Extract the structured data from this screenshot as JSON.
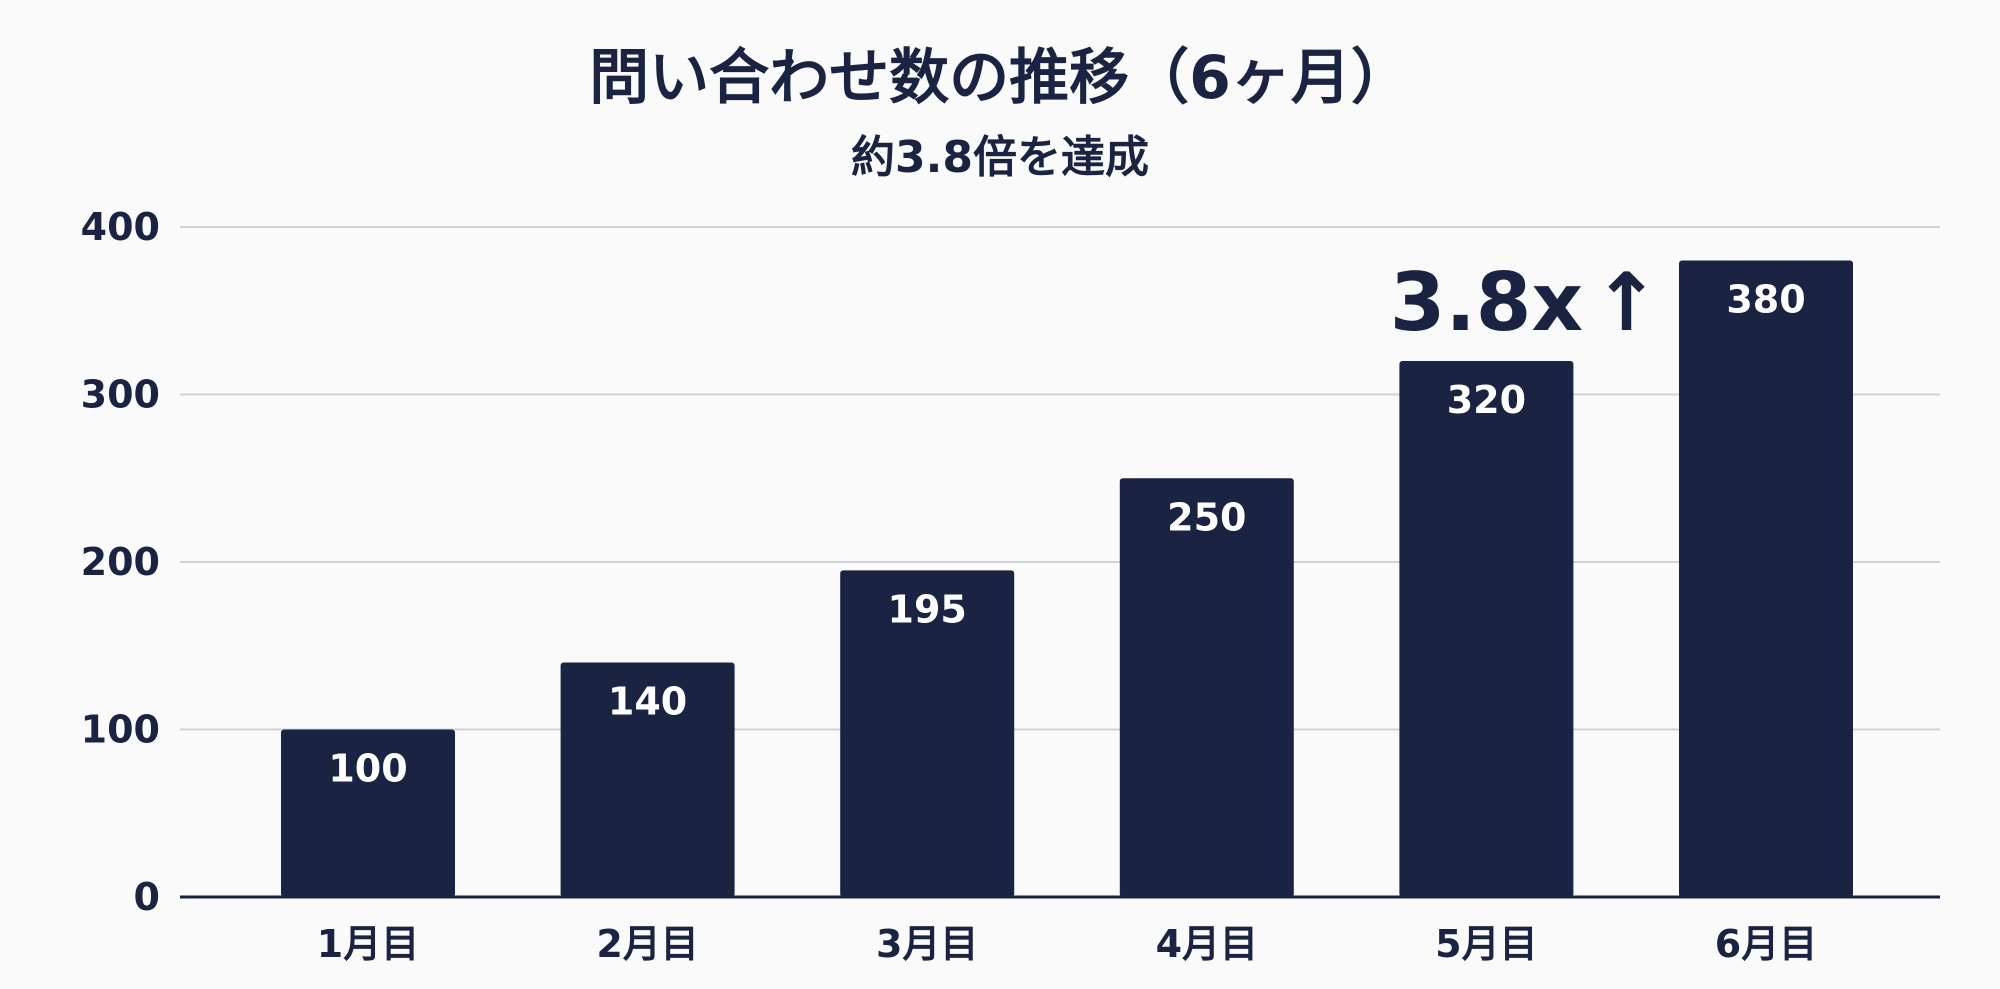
{
  "chart_data": {
    "type": "bar",
    "title": "問い合わせ数の推移（6ヶ月）",
    "subtitle": "約3.8倍を達成",
    "categories": [
      "1月目",
      "2月目",
      "3月目",
      "4月目",
      "5月目",
      "6月目"
    ],
    "values": [
      100,
      140,
      195,
      250,
      320,
      380
    ],
    "data_labels": [
      "100",
      "140",
      "195",
      "250",
      "320",
      "380"
    ],
    "ylim": [
      0,
      400
    ],
    "yticks": [
      "0",
      "100",
      "200",
      "300",
      "400"
    ],
    "xlabel": "",
    "ylabel": "",
    "grid": true,
    "annotation": {
      "text": "3.8x",
      "arrow": "↑",
      "target_category": "5月目"
    },
    "colors": {
      "bar": "#1a2442",
      "grid": "#cfd2d6",
      "background": "#fafafa",
      "label": "#ffffff"
    }
  }
}
